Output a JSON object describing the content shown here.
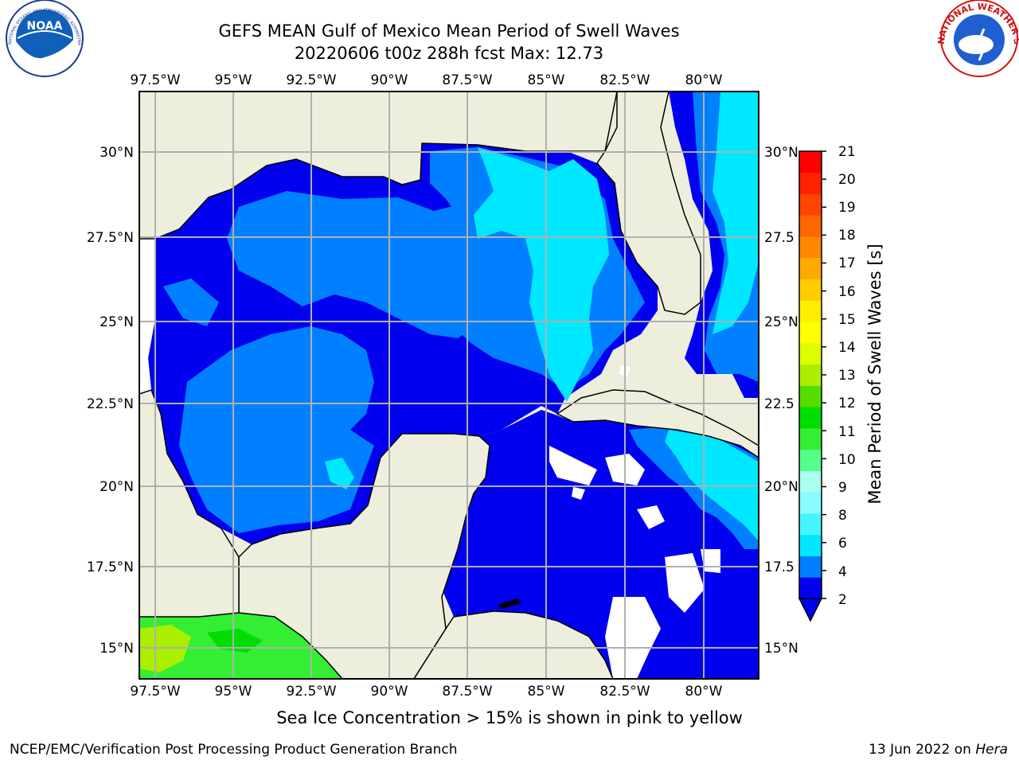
{
  "header": {
    "title_line1": "GEFS MEAN Gulf of Mexico Mean Period of Swell Waves",
    "title_line2": "20220606 t00z 288h fcst   Max: 12.73"
  },
  "logos": {
    "left": {
      "name": "noaa-logo",
      "text": "NOAA",
      "ring_text": "NATIONAL OCEANIC AND ATMOSPHERIC ADMINISTRATION · U.S. DEPARTMENT OF COMMERCE"
    },
    "right": {
      "name": "nws-logo",
      "ring_text": "NATIONAL WEATHER SERVICE"
    }
  },
  "map": {
    "lon_ticks_top": [
      "97.5°W",
      "95°W",
      "92.5°W",
      "90°W",
      "87.5°W",
      "85°W",
      "82.5°W",
      "80°W"
    ],
    "lon_ticks_bottom": [
      "97.5°W",
      "95°W",
      "92.5°W",
      "90°W",
      "87.5°W",
      "85°W",
      "82.5°W",
      "80°W"
    ],
    "lat_ticks_left": [
      "30°N",
      "27.5°N",
      "25°N",
      "22.5°N",
      "20°N",
      "17.5°N",
      "15°N"
    ],
    "lat_ticks_right": [
      "30°N",
      "27.5",
      "25°N",
      "22.5",
      "20°N",
      "17.5",
      "15°N"
    ],
    "land_color": "#eeeedd",
    "grid_color": "#b0b0b0"
  },
  "colorbar": {
    "label": "Mean Period of Swell Waves [s]",
    "ticks": [
      "21",
      "20",
      "19",
      "18",
      "17",
      "16",
      "15",
      "14",
      "13",
      "12",
      "11",
      "10",
      "9",
      "8",
      "6",
      "4",
      "2"
    ],
    "colors": [
      "#0000ee",
      "#0080ff",
      "#00e8ff",
      "#44f4ff",
      "#88fcff",
      "#aaffee",
      "#55ff88",
      "#33ee33",
      "#00dd00",
      "#55dd00",
      "#aaee00",
      "#ddff00",
      "#ffff00",
      "#ffee00",
      "#ffcc00",
      "#ffaa00",
      "#ff8800",
      "#ff6600",
      "#ff4400",
      "#ff2200",
      "#ff0000"
    ]
  },
  "footer": {
    "note": "Sea Ice Concentration > 15% is shown in pink to yellow",
    "credit": "NCEP/EMC/Verification Post Processing Product Generation Branch",
    "stamp_date": "13 Jun 2022 on",
    "stamp_host": "Hera"
  }
}
